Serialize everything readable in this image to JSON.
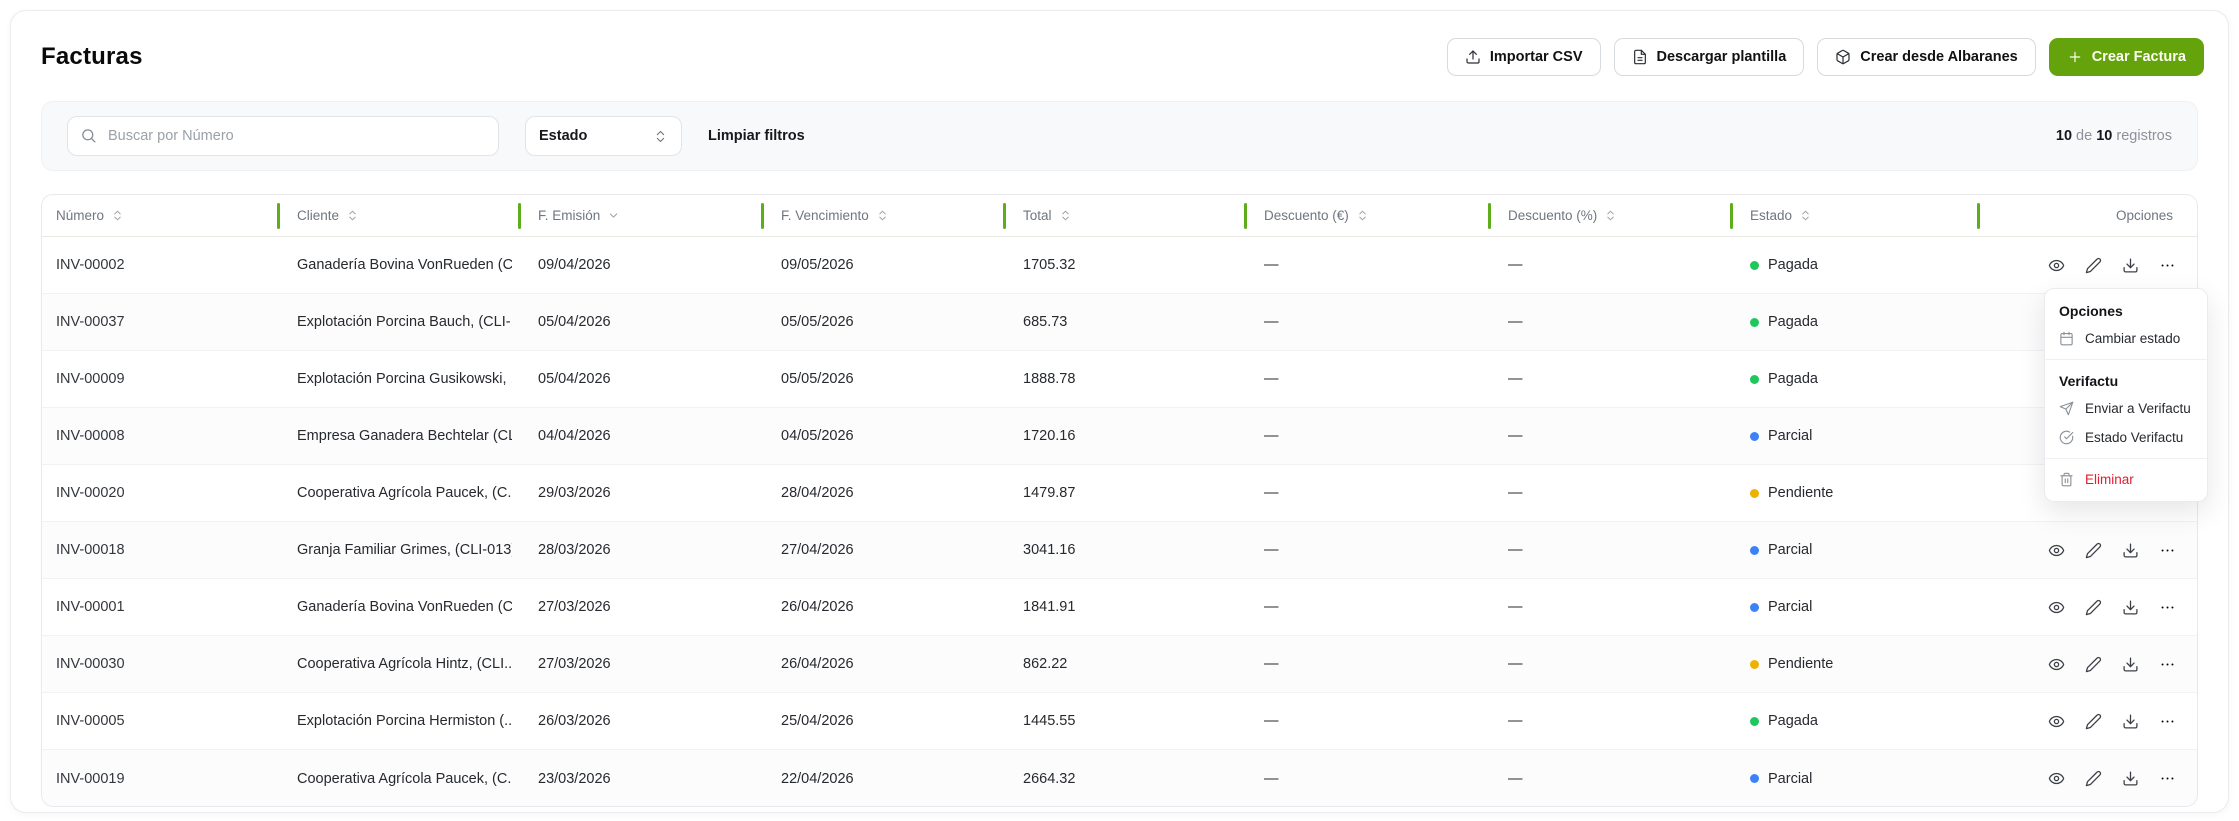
{
  "page": {
    "title": "Facturas"
  },
  "toolbar": {
    "buttons": [
      {
        "label": "Importar CSV",
        "icon": "upload",
        "style": "outline"
      },
      {
        "label": "Descargar plantilla",
        "icon": "file",
        "style": "outline"
      },
      {
        "label": "Crear desde Albaranes",
        "icon": "package",
        "style": "outline"
      },
      {
        "label": "Crear Factura",
        "icon": "plus",
        "style": "primary"
      }
    ]
  },
  "filters": {
    "search_placeholder": "Buscar por Número",
    "status_select_value": "Estado",
    "clear_filters_label": "Limpiar filtros",
    "records_shown": "10",
    "records_of": "de",
    "records_total": "10",
    "records_label": "registros"
  },
  "table": {
    "columns": [
      {
        "label": "Número",
        "sort": "both",
        "divider": false
      },
      {
        "label": "Cliente",
        "sort": "both",
        "divider": true
      },
      {
        "label": "F. Emisión",
        "sort": "desc",
        "divider": true
      },
      {
        "label": "F. Vencimiento",
        "sort": "both",
        "divider": true
      },
      {
        "label": "Total",
        "sort": "both",
        "divider": true
      },
      {
        "label": "Descuento (€)",
        "sort": "both",
        "divider": true
      },
      {
        "label": "Descuento (%)",
        "sort": "both",
        "divider": true
      },
      {
        "label": "Estado",
        "sort": "both",
        "divider": true
      },
      {
        "label": "Opciones",
        "sort": "none",
        "divider": true
      }
    ],
    "rows": [
      {
        "numero": "INV-00002",
        "cliente": "Ganadería Bovina VonRueden (C...",
        "emision": "09/04/2026",
        "vencimiento": "09/05/2026",
        "total": "1705.32",
        "descuento_eur": "—",
        "descuento_pct": "—",
        "estado": "Pagada"
      },
      {
        "numero": "INV-00037",
        "cliente": "Explotación Porcina Bauch, (CLI-...",
        "emision": "05/04/2026",
        "vencimiento": "05/05/2026",
        "total": "685.73",
        "descuento_eur": "—",
        "descuento_pct": "—",
        "estado": "Pagada"
      },
      {
        "numero": "INV-00009",
        "cliente": "Explotación Porcina Gusikowski, ...",
        "emision": "05/04/2026",
        "vencimiento": "05/05/2026",
        "total": "1888.78",
        "descuento_eur": "—",
        "descuento_pct": "—",
        "estado": "Pagada"
      },
      {
        "numero": "INV-00008",
        "cliente": "Empresa Ganadera Bechtelar (CL...",
        "emision": "04/04/2026",
        "vencimiento": "04/05/2026",
        "total": "1720.16",
        "descuento_eur": "—",
        "descuento_pct": "—",
        "estado": "Parcial"
      },
      {
        "numero": "INV-00020",
        "cliente": "Cooperativa Agrícola Paucek, (C...",
        "emision": "29/03/2026",
        "vencimiento": "28/04/2026",
        "total": "1479.87",
        "descuento_eur": "—",
        "descuento_pct": "—",
        "estado": "Pendiente"
      },
      {
        "numero": "INV-00018",
        "cliente": "Granja Familiar Grimes, (CLI-013)",
        "emision": "28/03/2026",
        "vencimiento": "27/04/2026",
        "total": "3041.16",
        "descuento_eur": "—",
        "descuento_pct": "—",
        "estado": "Parcial"
      },
      {
        "numero": "INV-00001",
        "cliente": "Ganadería Bovina VonRueden (C...",
        "emision": "27/03/2026",
        "vencimiento": "26/04/2026",
        "total": "1841.91",
        "descuento_eur": "—",
        "descuento_pct": "—",
        "estado": "Parcial"
      },
      {
        "numero": "INV-00030",
        "cliente": "Cooperativa Agrícola Hintz, (CLI...",
        "emision": "27/03/2026",
        "vencimiento": "26/04/2026",
        "total": "862.22",
        "descuento_eur": "—",
        "descuento_pct": "—",
        "estado": "Pendiente"
      },
      {
        "numero": "INV-00005",
        "cliente": "Explotación Porcina Hermiston (...",
        "emision": "26/03/2026",
        "vencimiento": "25/04/2026",
        "total": "1445.55",
        "descuento_eur": "—",
        "descuento_pct": "—",
        "estado": "Pagada"
      },
      {
        "numero": "INV-00019",
        "cliente": "Cooperativa Agrícola Paucek, (C...",
        "emision": "23/03/2026",
        "vencimiento": "22/04/2026",
        "total": "2664.32",
        "descuento_eur": "—",
        "descuento_pct": "—",
        "estado": "Parcial"
      }
    ],
    "row_actions": [
      {
        "name": "view-button",
        "icon": "eye"
      },
      {
        "name": "edit-button",
        "icon": "pencil"
      },
      {
        "name": "download-button",
        "icon": "download"
      },
      {
        "name": "more-button",
        "icon": "ellipsis"
      }
    ]
  },
  "status_colors": {
    "Pagada": "#1fc75d",
    "Parcial": "#3b82f6",
    "Pendiente": "#efb100"
  },
  "context_menu": {
    "options_title": "Opciones",
    "change_status": "Cambiar estado",
    "verifactu_title": "Verifactu",
    "send_verifactu": "Enviar a Verifactu",
    "status_verifactu": "Estado Verifactu",
    "delete_label": "Eliminar"
  },
  "colors": {
    "accent_green": "#65a30d",
    "header_divider_green": "#5ead1c",
    "danger_red": "#e11d2e"
  }
}
